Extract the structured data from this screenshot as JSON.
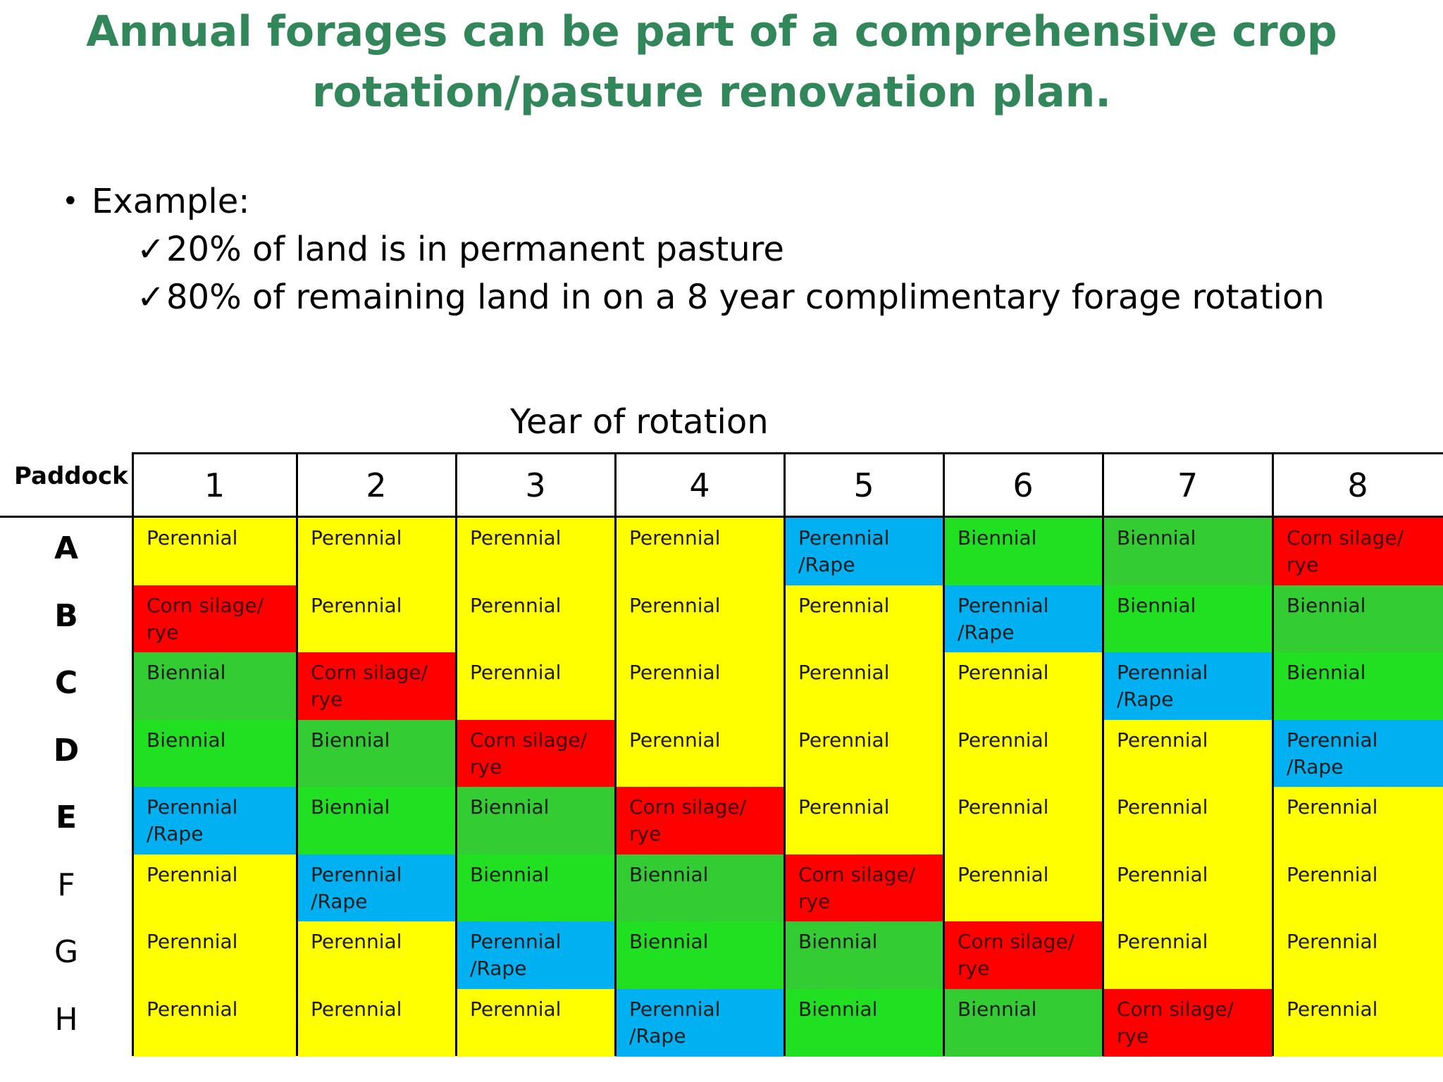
{
  "title": {
    "line1": "Annual forages can be part of a comprehensive crop",
    "line2": "rotation/pasture renovation plan."
  },
  "bullets": {
    "heading": "Example:",
    "items": [
      "20% of land is in permanent pasture",
      "80% of remaining land in on a 8 year complimentary forage rotation"
    ]
  },
  "table": {
    "year_label": "Year of rotation",
    "row_header": "Paddock",
    "columns": [
      "1",
      "2",
      "3",
      "4",
      "5",
      "6",
      "7",
      "8"
    ],
    "rows": [
      {
        "label": "A",
        "cells": [
          "Perennial",
          "Perennial",
          "Perennial",
          "Perennial",
          "Perennial\n/Rape",
          "Biennial",
          "Biennial",
          "Corn silage/\nrye"
        ]
      },
      {
        "label": "B",
        "cells": [
          "Corn silage/\nrye",
          "Perennial",
          "Perennial",
          "Perennial",
          "Perennial",
          "Perennial\n /Rape",
          "Biennial",
          "Biennial"
        ]
      },
      {
        "label": "C",
        "cells": [
          "Biennial",
          "Corn silage/\nrye",
          "Perennial",
          "Perennial",
          "Perennial",
          "Perennial",
          "Perennial\n /Rape",
          "Biennial"
        ]
      },
      {
        "label": "D",
        "cells": [
          "Biennial",
          "Biennial",
          "Corn silage/\nrye",
          "Perennial",
          "Perennial",
          "Perennial",
          "Perennial",
          "Perennial\n/Rape"
        ]
      },
      {
        "label": "E",
        "cells": [
          "Perennial\n/Rape",
          "Biennial",
          "Biennial",
          "Corn silage/\nrye",
          "Perennial",
          "Perennial",
          "Perennial",
          "Perennial"
        ]
      },
      {
        "label": "F",
        "cells": [
          "Perennial",
          "Perennial\n/Rape",
          "Biennial",
          "Biennial",
          "Corn silage/\nrye",
          "Perennial",
          "Perennial",
          "Perennial"
        ]
      },
      {
        "label": "G",
        "cells": [
          "Perennial",
          "Perennial",
          "Perennial\n/Rape",
          "Biennial",
          "Biennial",
          "Corn silage/\nrye",
          "Perennial",
          "Perennial"
        ]
      },
      {
        "label": "H",
        "cells": [
          "Perennial",
          "Perennial",
          "Perennial",
          "Perennial\n/Rape",
          "Biennial",
          "Biennial",
          "Corn silage/\nrye",
          "Perennial"
        ]
      }
    ],
    "colors": {
      "perennial": "#ffff00",
      "rape": "#00b0f0",
      "corn": "#ff0000",
      "biennial_a": "#21e021",
      "biennial_b": "#33cc33"
    }
  }
}
